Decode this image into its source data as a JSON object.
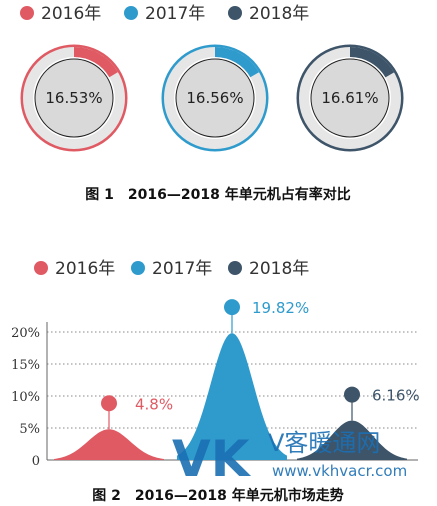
{
  "colors": {
    "2016": "#e05a63",
    "2017": "#2f9bcd",
    "2018": "#3d5469",
    "ring_bg": "#e6e6e6"
  },
  "figure1": {
    "legend": [
      {
        "label": "2016年",
        "color": "#e05a63"
      },
      {
        "label": "2017年",
        "color": "#2f9bcd"
      },
      {
        "label": "2018年",
        "color": "#3d5469"
      }
    ],
    "caption": "图 1　2016—2018 年单元机占有率对比"
  },
  "figure2": {
    "legend": [
      {
        "label": "2016年",
        "color": "#e05a63"
      },
      {
        "label": "2017年",
        "color": "#2f9bcd"
      },
      {
        "label": "2018年",
        "color": "#3d5469"
      }
    ],
    "caption": "图 2　2016—2018 年单元机市场走势"
  },
  "watermark": {
    "logo": "VK",
    "text_cn": "V客暖通网",
    "url": "www.vkhvacr.com"
  },
  "chart_data": [
    {
      "type": "pie",
      "title": "",
      "series": [
        {
          "name": "2016年",
          "value": 16.53,
          "label": "16.53%",
          "color": "#e05a63"
        },
        {
          "name": "2017年",
          "value": 16.56,
          "label": "16.56%",
          "color": "#2f9bcd"
        },
        {
          "name": "2018年",
          "value": 16.61,
          "label": "16.61%",
          "color": "#3d5469"
        }
      ]
    },
    {
      "type": "area",
      "title": "",
      "categories": [
        "2016年",
        "2017年",
        "2018年"
      ],
      "values": [
        4.8,
        19.82,
        6.16
      ],
      "labels": [
        "4.8%",
        "19.82%",
        "6.16%"
      ],
      "ytick_labels": [
        "0",
        "5%",
        "10%",
        "15%",
        "20%"
      ],
      "yticks": [
        0,
        5,
        10,
        15,
        20
      ],
      "ylim": [
        0,
        20
      ],
      "grid": true
    }
  ]
}
